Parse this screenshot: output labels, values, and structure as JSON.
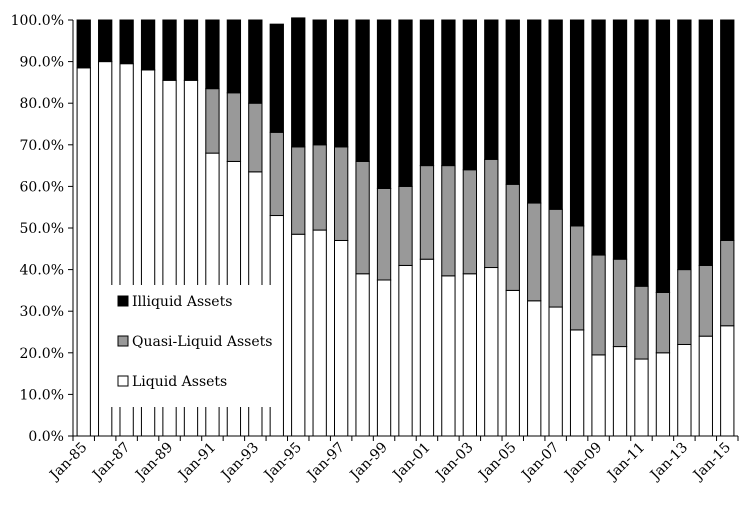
{
  "chart_data": {
    "type": "bar",
    "stacked": true,
    "percent_stacked": true,
    "title": "",
    "xlabel": "",
    "ylabel": "",
    "ylim": [
      0,
      100
    ],
    "y_ticks": [
      "0.0%",
      "10.0%",
      "20.0%",
      "30.0%",
      "40.0%",
      "50.0%",
      "60.0%",
      "70.0%",
      "80.0%",
      "90.0%",
      "100.0%"
    ],
    "grid": false,
    "legend_position": "bottom-left",
    "categories": [
      "Jan-85",
      "Jan-86",
      "Jan-87",
      "Jan-88",
      "Jan-89",
      "Jan-90",
      "Jan-91",
      "Jan-92",
      "Jan-93",
      "Jan-94",
      "Jan-95",
      "Jan-96",
      "Jan-97",
      "Jan-98",
      "Jan-99",
      "Jan-00",
      "Jan-01",
      "Jan-02",
      "Jan-03",
      "Jan-04",
      "Jan-05",
      "Jan-06",
      "Jan-07",
      "Jan-08",
      "Jan-09",
      "Jan-10",
      "Jan-11",
      "Jan-12",
      "Jan-13",
      "Jan-14",
      "Jan-15"
    ],
    "x_tick_labels": [
      "Jan-85",
      "Jan-87",
      "Jan-89",
      "Jan-91",
      "Jan-93",
      "Jan-95",
      "Jan-97",
      "Jan-99",
      "Jan-01",
      "Jan-03",
      "Jan-05",
      "Jan-07",
      "Jan-09",
      "Jan-11",
      "Jan-13",
      "Jan-15"
    ],
    "series": [
      {
        "name": "Liquid Assets",
        "color": "#ffffff",
        "values": [
          88.5,
          90.0,
          89.5,
          88.0,
          85.5,
          85.5,
          68.0,
          66.0,
          63.5,
          53.0,
          48.5,
          49.5,
          47.0,
          39.0,
          37.5,
          41.0,
          42.5,
          38.5,
          39.0,
          40.5,
          35.0,
          32.5,
          31.0,
          25.5,
          19.5,
          21.5,
          18.5,
          20.0,
          22.0,
          24.0,
          26.5
        ]
      },
      {
        "name": "Quasi-Liquid Assets",
        "color": "#999999",
        "values": [
          0,
          0,
          0,
          0,
          0,
          0,
          15.5,
          16.5,
          16.5,
          20.0,
          21.0,
          20.5,
          22.5,
          27.0,
          22.0,
          19.0,
          22.5,
          26.5,
          25.0,
          26.0,
          25.5,
          23.5,
          23.5,
          25.0,
          24.0,
          21.0,
          17.5,
          14.5,
          18.0,
          17.0,
          20.5
        ]
      },
      {
        "name": "Illiquid Assets",
        "color": "#000000",
        "values": [
          11.5,
          10.0,
          10.5,
          12.0,
          14.5,
          14.5,
          16.5,
          17.5,
          20.0,
          26.0,
          31.0,
          30.0,
          30.5,
          34.0,
          40.5,
          40.0,
          35.0,
          35.0,
          36.0,
          33.5,
          39.5,
          44.0,
          45.5,
          49.5,
          56.5,
          57.5,
          64.0,
          65.5,
          60.0,
          59.0,
          53.0
        ]
      }
    ],
    "legend_order": [
      "Illiquid Assets",
      "Quasi-Liquid Assets",
      "Liquid Assets"
    ]
  }
}
